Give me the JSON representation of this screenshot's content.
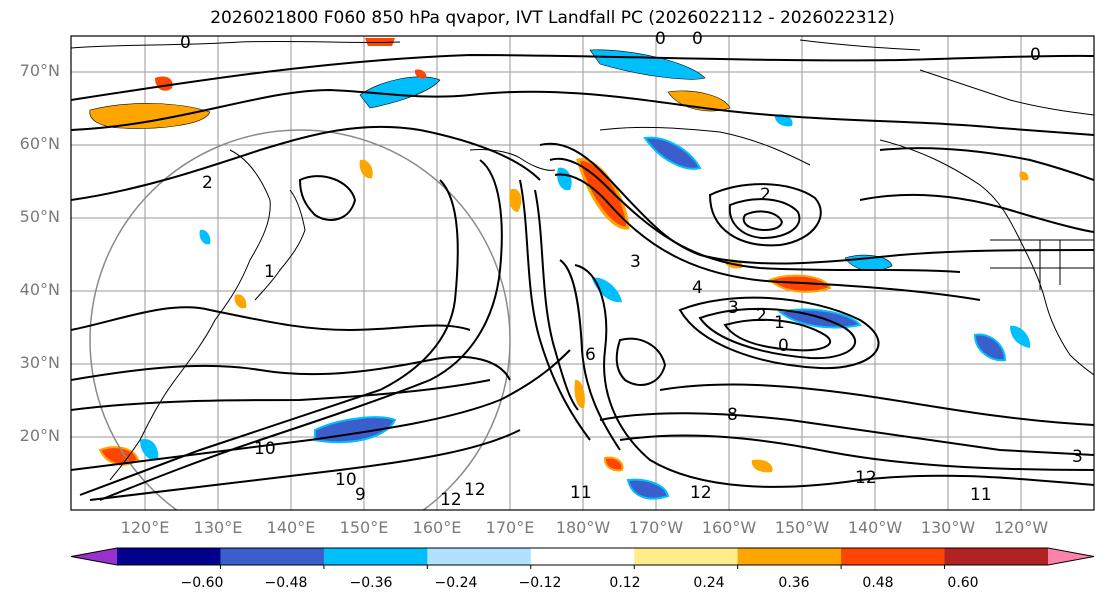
{
  "title": "2026021800 F060 850 hPa qvapor, IVT Landfall PC (2026022112 - 2026022312)",
  "lat_labels": [
    "70°N",
    "60°N",
    "50°N",
    "40°N",
    "30°N",
    "20°N"
  ],
  "lon_labels": [
    "120°E",
    "130°E",
    "140°E",
    "150°E",
    "160°E",
    "170°E",
    "180°W",
    "170°W",
    "160°W",
    "150°W",
    "140°W",
    "130°W",
    "120°W"
  ],
  "colorbar": {
    "ticks": [
      "−0.60",
      "−0.48",
      "−0.36",
      "−0.24",
      "−0.12",
      "0.12",
      "0.24",
      "0.36",
      "0.48",
      "0.60"
    ],
    "colors": [
      "#9932cc",
      "#00008b",
      "#3a5fcd",
      "#00bfff",
      "#b0e2ff",
      "#ffffff",
      "#ffec8b",
      "#ffa500",
      "#ff4500",
      "#b22222",
      "#ff82ab"
    ]
  },
  "contour_labels": [
    "0",
    "0",
    "0",
    "0",
    "2",
    "2",
    "1",
    "3",
    "4",
    "3",
    "2",
    "1",
    "0",
    "6",
    "10",
    "12",
    "12",
    "11",
    "12",
    "12",
    "11",
    "3",
    "8",
    "9",
    "10"
  ]
}
